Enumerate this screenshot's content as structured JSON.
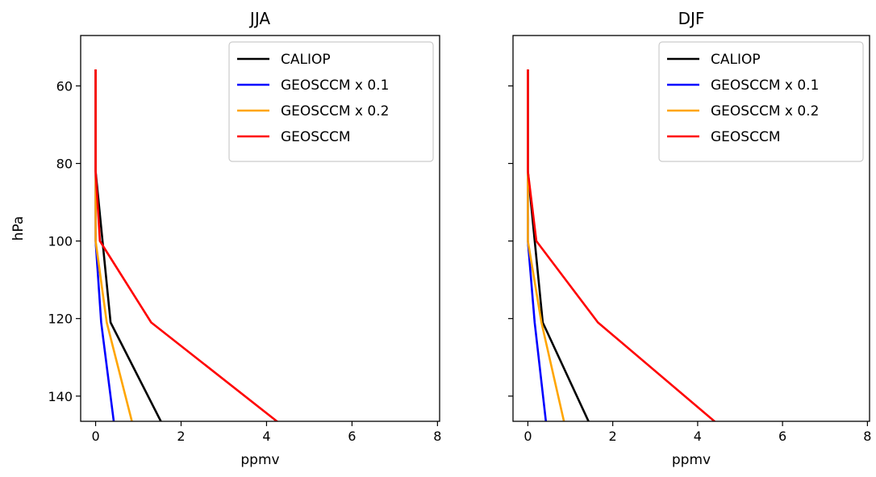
{
  "chart_data": [
    {
      "type": "line",
      "title": "JJA",
      "xlabel": "ppmv",
      "ylabel": "hPa",
      "xlim": [
        -0.35,
        8.05
      ],
      "ylim": [
        146.5,
        47
      ],
      "y_inverted": true,
      "xticks": [
        0,
        2,
        4,
        6,
        8
      ],
      "yticks": [
        60,
        80,
        100,
        120,
        140
      ],
      "legend_position": "top-right",
      "grid": false,
      "series": [
        {
          "name": "CALIOP",
          "color": "#000000",
          "x": [
            0.0,
            0.0,
            0.35,
            1.55
          ],
          "y": [
            56,
            82,
            121,
            147
          ]
        },
        {
          "name": "GEOSCCM x 0.1",
          "color": "#0000ff",
          "x": [
            0.0,
            0.0,
            0.13,
            0.43
          ],
          "y": [
            56,
            100,
            121,
            147
          ]
        },
        {
          "name": "GEOSCCM x 0.2",
          "color": "#ffa500",
          "x": [
            0.0,
            0.0,
            0.26,
            0.86
          ],
          "y": [
            56,
            100,
            121,
            147
          ]
        },
        {
          "name": "GEOSCCM",
          "color": "#ff0000",
          "x": [
            0.0,
            0.0,
            0.1,
            1.3,
            4.3
          ],
          "y": [
            56,
            82,
            100,
            121,
            147
          ]
        }
      ]
    },
    {
      "type": "line",
      "title": "DJF",
      "xlabel": "ppmv",
      "ylabel": "",
      "xlim": [
        -0.35,
        8.05
      ],
      "ylim": [
        146.5,
        47
      ],
      "y_inverted": true,
      "xticks": [
        0,
        2,
        4,
        6,
        8
      ],
      "yticks": [
        60,
        80,
        100,
        120,
        140
      ],
      "legend_position": "top-right",
      "grid": false,
      "series": [
        {
          "name": "CALIOP",
          "color": "#000000",
          "x": [
            0.0,
            0.0,
            0.35,
            1.45
          ],
          "y": [
            56,
            82,
            121,
            147
          ]
        },
        {
          "name": "GEOSCCM x 0.1",
          "color": "#0000ff",
          "x": [
            0.0,
            0.0,
            0.16,
            0.43
          ],
          "y": [
            56,
            100,
            121,
            147
          ]
        },
        {
          "name": "GEOSCCM x 0.2",
          "color": "#ffa500",
          "x": [
            0.0,
            0.0,
            0.32,
            0.86
          ],
          "y": [
            56,
            100,
            121,
            147
          ]
        },
        {
          "name": "GEOSCCM",
          "color": "#ff0000",
          "x": [
            0.0,
            0.0,
            0.2,
            1.65,
            4.45
          ],
          "y": [
            56,
            82,
            100,
            121,
            147
          ]
        }
      ]
    }
  ]
}
